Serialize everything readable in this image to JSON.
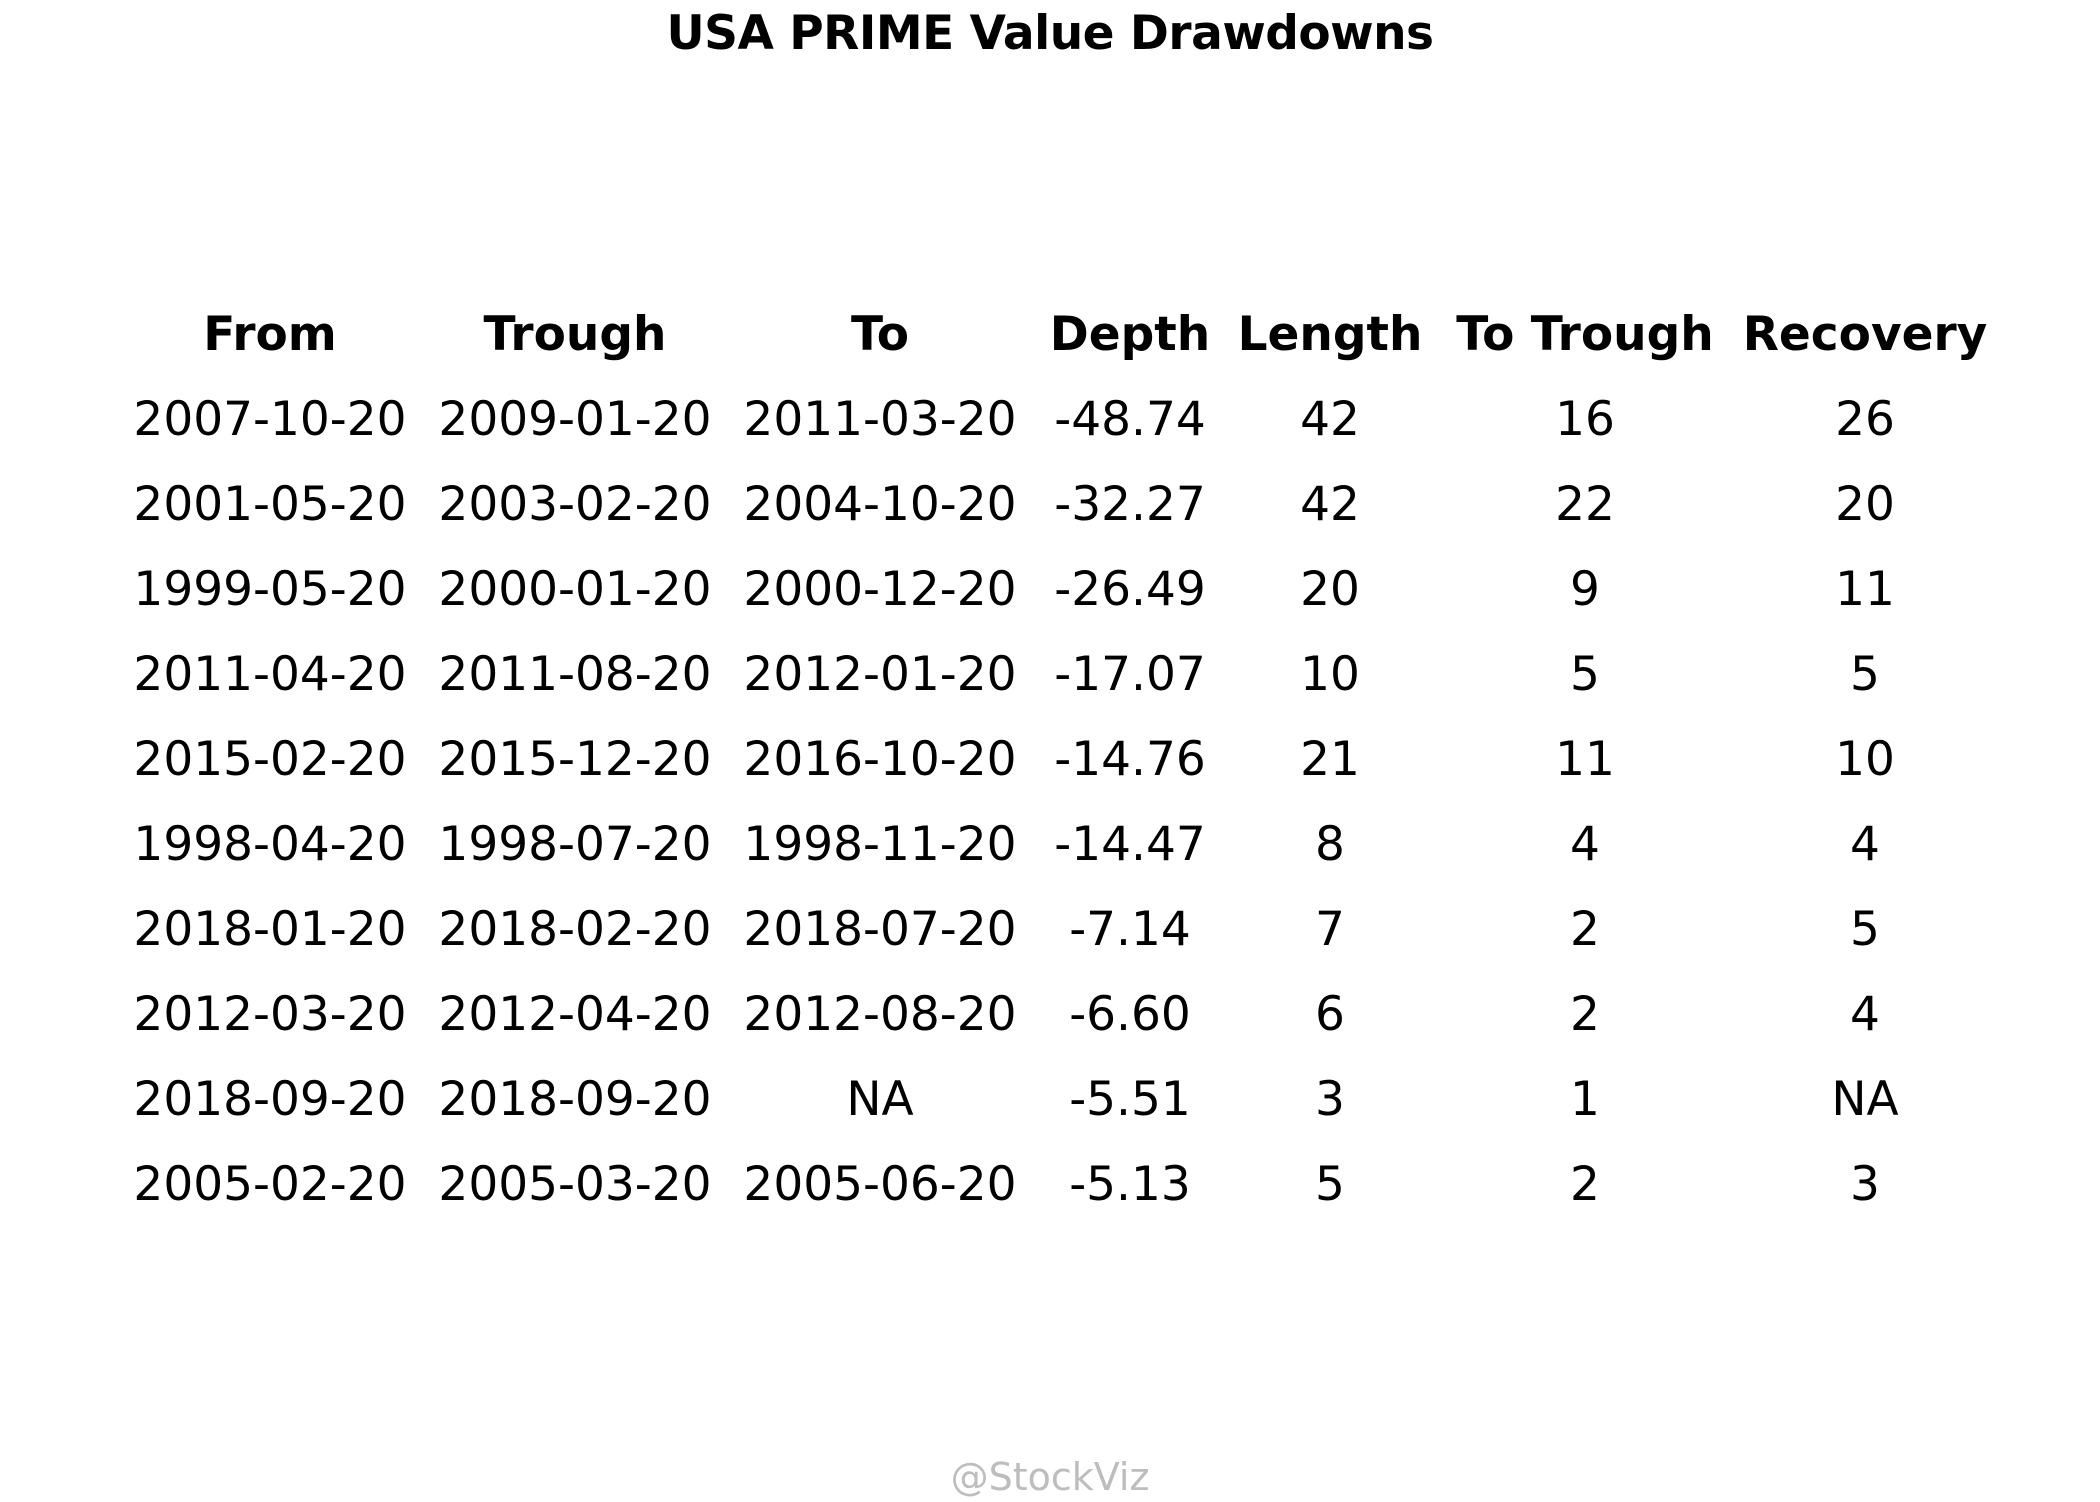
{
  "title": "USA PRIME Value Drawdowns",
  "watermark": "@StockViz",
  "chart_data": {
    "type": "table",
    "title": "USA PRIME Value Drawdowns",
    "columns": [
      "From",
      "Trough",
      "To",
      "Depth",
      "Length",
      "To Trough",
      "Recovery"
    ],
    "rows": [
      [
        "2007-10-20",
        "2009-01-20",
        "2011-03-20",
        "-48.74",
        "42",
        "16",
        "26"
      ],
      [
        "2001-05-20",
        "2003-02-20",
        "2004-10-20",
        "-32.27",
        "42",
        "22",
        "20"
      ],
      [
        "1999-05-20",
        "2000-01-20",
        "2000-12-20",
        "-26.49",
        "20",
        "9",
        "11"
      ],
      [
        "2011-04-20",
        "2011-08-20",
        "2012-01-20",
        "-17.07",
        "10",
        "5",
        "5"
      ],
      [
        "2015-02-20",
        "2015-12-20",
        "2016-10-20",
        "-14.76",
        "21",
        "11",
        "10"
      ],
      [
        "1998-04-20",
        "1998-07-20",
        "1998-11-20",
        "-14.47",
        "8",
        "4",
        "4"
      ],
      [
        "2018-01-20",
        "2018-02-20",
        "2018-07-20",
        "-7.14",
        "7",
        "2",
        "5"
      ],
      [
        "2012-03-20",
        "2012-04-20",
        "2012-08-20",
        "-6.60",
        "6",
        "2",
        "4"
      ],
      [
        "2018-09-20",
        "2018-09-20",
        "NA",
        "-5.51",
        "3",
        "1",
        "NA"
      ],
      [
        "2005-02-20",
        "2005-03-20",
        "2005-06-20",
        "-5.13",
        "5",
        "2",
        "3"
      ]
    ]
  }
}
